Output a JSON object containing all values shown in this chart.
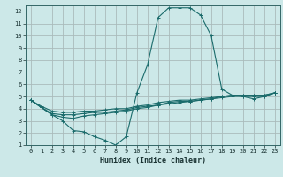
{
  "xlabel": "Humidex (Indice chaleur)",
  "bg_color": "#cce8e8",
  "grid_color": "#aabbbb",
  "line_color": "#1a6b6b",
  "xlim": [
    -0.5,
    23.5
  ],
  "ylim": [
    1,
    12.5
  ],
  "xticks": [
    0,
    1,
    2,
    3,
    4,
    5,
    6,
    7,
    8,
    9,
    10,
    11,
    12,
    13,
    14,
    15,
    16,
    17,
    18,
    19,
    20,
    21,
    22,
    23
  ],
  "yticks": [
    1,
    2,
    3,
    4,
    5,
    6,
    7,
    8,
    9,
    10,
    11,
    12
  ],
  "series": [
    {
      "x": [
        0,
        1,
        2,
        3,
        4,
        5,
        6,
        7,
        8,
        9,
        10,
        11,
        12,
        13,
        14,
        15,
        16,
        17,
        18,
        19,
        20,
        21,
        22,
        23
      ],
      "y": [
        4.7,
        4.1,
        3.5,
        3.0,
        2.2,
        2.1,
        1.7,
        1.4,
        1.0,
        1.7,
        5.3,
        7.6,
        11.5,
        12.3,
        12.3,
        12.3,
        11.7,
        10.0,
        5.6,
        5.1,
        5.0,
        4.8,
        5.0,
        5.3
      ]
    },
    {
      "x": [
        0,
        1,
        2,
        3,
        4,
        5,
        6,
        7,
        8,
        9,
        10,
        11,
        12,
        13,
        14,
        15,
        16,
        17,
        18,
        19,
        20,
        21,
        22,
        23
      ],
      "y": [
        4.7,
        4.1,
        3.5,
        3.3,
        3.2,
        3.4,
        3.5,
        3.6,
        3.7,
        3.8,
        4.0,
        4.1,
        4.3,
        4.4,
        4.5,
        4.6,
        4.7,
        4.8,
        4.9,
        5.0,
        5.0,
        5.0,
        5.0,
        5.3
      ]
    },
    {
      "x": [
        0,
        1,
        2,
        3,
        4,
        5,
        6,
        7,
        8,
        9,
        10,
        11,
        12,
        13,
        14,
        15,
        16,
        17,
        18,
        19,
        20,
        21,
        22,
        23
      ],
      "y": [
        4.7,
        4.1,
        3.6,
        3.5,
        3.5,
        3.6,
        3.7,
        3.7,
        3.8,
        3.9,
        4.1,
        4.2,
        4.3,
        4.5,
        4.6,
        4.6,
        4.7,
        4.8,
        5.0,
        5.1,
        5.1,
        5.1,
        5.1,
        5.3
      ]
    },
    {
      "x": [
        0,
        1,
        2,
        3,
        4,
        5,
        6,
        7,
        8,
        9,
        10,
        11,
        12,
        13,
        14,
        15,
        16,
        17,
        18,
        19,
        20,
        21,
        22,
        23
      ],
      "y": [
        4.7,
        4.2,
        3.8,
        3.7,
        3.7,
        3.8,
        3.8,
        3.9,
        4.0,
        4.0,
        4.2,
        4.3,
        4.5,
        4.6,
        4.7,
        4.7,
        4.8,
        4.9,
        5.0,
        5.1,
        5.1,
        5.1,
        5.1,
        5.3
      ]
    }
  ]
}
